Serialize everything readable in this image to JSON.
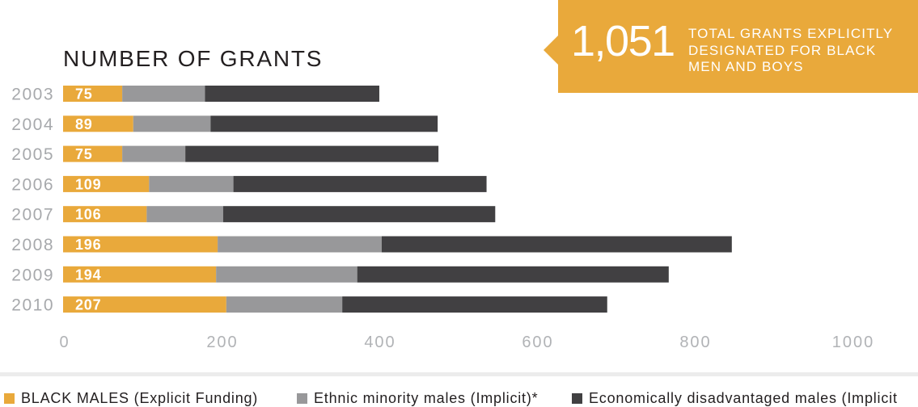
{
  "chart_data": {
    "type": "bar",
    "orientation": "horizontal",
    "stacked": true,
    "title": "NUMBER OF GRANTS",
    "categories": [
      "2003",
      "2004",
      "2005",
      "2006",
      "2007",
      "2008",
      "2009",
      "2010"
    ],
    "series": [
      {
        "name": "BLACK MALES (Explicit Funding)",
        "color": "#E9A93B",
        "show_labels": true,
        "values": [
          75,
          89,
          75,
          109,
          106,
          196,
          194,
          207
        ]
      },
      {
        "name": "Ethnic minority males (Implicit)*",
        "color": "#98989A",
        "show_labels": false,
        "values": [
          105,
          98,
          80,
          107,
          97,
          208,
          179,
          147
        ]
      },
      {
        "name": "Economically disadvantaged males (Implicit",
        "color": "#414042",
        "show_labels": false,
        "values": [
          221,
          288,
          321,
          321,
          345,
          444,
          395,
          336
        ]
      }
    ],
    "xlim": [
      0,
      1000
    ],
    "xticks": [
      0,
      200,
      400,
      600,
      800,
      1000
    ],
    "grid": false,
    "legend": "bottom",
    "annotation": {
      "value": "1,051",
      "lines": [
        "TOTAL GRANTS EXPLICITLY",
        "DESIGNATED FOR BLACK",
        "MEN AND BOYS"
      ],
      "color": "#E9A93B"
    }
  }
}
